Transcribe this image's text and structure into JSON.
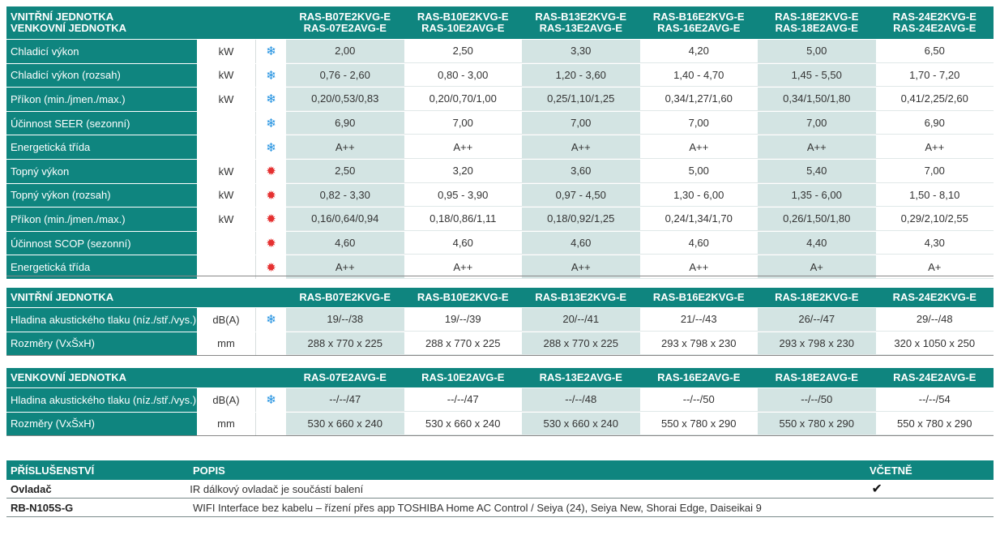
{
  "t1": {
    "h1": "VNITŘNÍ JEDNOTKA",
    "h2": "VENKOVNÍ JEDNOTKA",
    "models": [
      [
        "RAS-B07E2KVG-E",
        "RAS-07E2AVG-E"
      ],
      [
        "RAS-B10E2KVG-E",
        "RAS-10E2AVG-E"
      ],
      [
        "RAS-B13E2KVG-E",
        "RAS-13E2AVG-E"
      ],
      [
        "RAS-B16E2KVG-E",
        "RAS-16E2AVG-E"
      ],
      [
        "RAS-18E2KVG-E",
        "RAS-18E2AVG-E"
      ],
      [
        "RAS-24E2KVG-E",
        "RAS-24E2AVG-E"
      ]
    ],
    "rows": [
      {
        "label": "Chladicí výkon",
        "unit": "kW",
        "icon": "snowflake-icon",
        "v": [
          "2,00",
          "2,50",
          "3,30",
          "4,20",
          "5,00",
          "6,50"
        ]
      },
      {
        "label": "Chladicí výkon (rozsah)",
        "unit": "kW",
        "icon": "snowflake-icon",
        "v": [
          "0,76 - 2,60",
          "0,80 - 3,00",
          "1,20 - 3,60",
          "1,40 - 4,70",
          "1,45 - 5,50",
          "1,70 - 7,20"
        ]
      },
      {
        "label": "Příkon (min./jmen./max.)",
        "unit": "kW",
        "icon": "snowflake-icon",
        "v": [
          "0,20/0,53/0,83",
          "0,20/0,70/1,00",
          "0,25/1,10/1,25",
          "0,34/1,27/1,60",
          "0,34/1,50/1,80",
          "0,41/2,25/2,60"
        ]
      },
      {
        "label": "Účinnost SEER (sezonní)",
        "unit": "",
        "icon": "snowflake-icon",
        "v": [
          "6,90",
          "7,00",
          "7,00",
          "7,00",
          "7,00",
          "6,90"
        ]
      },
      {
        "label": "Energetická třída",
        "unit": "",
        "icon": "snowflake-icon",
        "v": [
          "A++",
          "A++",
          "A++",
          "A++",
          "A++",
          "A++"
        ]
      },
      {
        "label": "Topný výkon",
        "unit": "kW",
        "icon": "sun-icon",
        "v": [
          "2,50",
          "3,20",
          "3,60",
          "5,00",
          "5,40",
          "7,00"
        ]
      },
      {
        "label": "Topný výkon (rozsah)",
        "unit": "kW",
        "icon": "sun-icon",
        "v": [
          "0,82 - 3,30",
          "0,95 - 3,90",
          "0,97 - 4,50",
          "1,30 - 6,00",
          "1,35 - 6,00",
          "1,50 - 8,10"
        ]
      },
      {
        "label": "Příkon (min./jmen./max.)",
        "unit": "kW",
        "icon": "sun-icon",
        "v": [
          "0,16/0,64/0,94",
          "0,18/0,86/1,11",
          "0,18/0,92/1,25",
          "0,24/1,34/1,70",
          "0,26/1,50/1,80",
          "0,29/2,10/2,55"
        ]
      },
      {
        "label": "Účinnost SCOP (sezonní)",
        "unit": "",
        "icon": "sun-icon",
        "v": [
          "4,60",
          "4,60",
          "4,60",
          "4,60",
          "4,40",
          "4,30"
        ]
      },
      {
        "label": "Energetická třída",
        "unit": "",
        "icon": "sun-icon",
        "v": [
          "A++",
          "A++",
          "A++",
          "A++",
          "A+",
          "A+"
        ]
      }
    ]
  },
  "t2": {
    "h": "VNITŘNÍ JEDNOTKA",
    "models": [
      "RAS-B07E2KVG-E",
      "RAS-B10E2KVG-E",
      "RAS-B13E2KVG-E",
      "RAS-B16E2KVG-E",
      "RAS-18E2KVG-E",
      "RAS-24E2KVG-E"
    ],
    "rows": [
      {
        "label": "Hladina akustického tlaku (níz./stř./vys.)",
        "unit": "dB(A)",
        "icon": "snowflake-icon",
        "v": [
          "19/--/38",
          "19/--/39",
          "20/--/41",
          "21/--/43",
          "26/--/47",
          "29/--/48"
        ]
      },
      {
        "label": "Rozměry (VxŠxH)",
        "unit": "mm",
        "icon": "",
        "v": [
          "288 x 770 x 225",
          "288 x 770 x 225",
          "288 x 770 x 225",
          "293 x 798 x 230",
          "293 x 798 x 230",
          "320 x 1050 x 250"
        ]
      }
    ]
  },
  "t3": {
    "h": "VENKOVNÍ JEDNOTKA",
    "models": [
      "RAS-07E2AVG-E",
      "RAS-10E2AVG-E",
      "RAS-13E2AVG-E",
      "RAS-16E2AVG-E",
      "RAS-18E2AVG-E",
      "RAS-24E2AVG-E"
    ],
    "rows": [
      {
        "label": "Hladina akustického tlaku (níz./stř./vys.)",
        "unit": "dB(A)",
        "icon": "snowflake-icon",
        "v": [
          "--/--/47",
          "--/--/47",
          "--/--/48",
          "--/--/50",
          "--/--/50",
          "--/--/54"
        ]
      },
      {
        "label": "Rozměry (VxŠxH)",
        "unit": "mm",
        "icon": "",
        "v": [
          "530 x 660 x 240",
          "530 x 660 x 240",
          "530 x 660 x 240",
          "550 x 780 x 290",
          "550 x 780 x 290",
          "550 x 780 x 290"
        ]
      }
    ]
  },
  "acc": {
    "h1": "PŘÍSLUŠENSTVÍ",
    "h2": "POPIS",
    "h3": "VČETNĚ",
    "rows": [
      {
        "name": "Ovladač",
        "desc": "IR dálkový ovladač je součástí balení",
        "included": "✔"
      },
      {
        "name": "RB-N105S-G",
        "desc": "WIFI Interface bez kabelu – řízení přes app TOSHIBA Home AC Control / Seiya (24), Seiya New, Shorai Edge, Daiseikai 9",
        "included": ""
      }
    ]
  },
  "colors": {
    "teal": "#0f857f",
    "shade": "#d3e4e3",
    "snow": "#1d8fe0",
    "sun": "#e53030"
  }
}
